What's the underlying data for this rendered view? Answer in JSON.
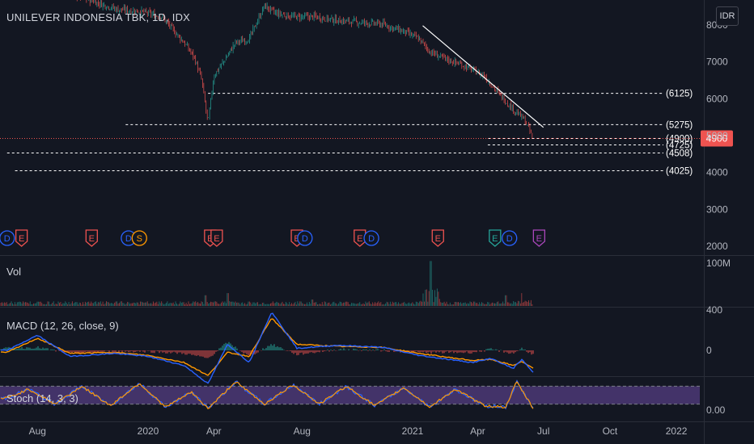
{
  "header": {
    "symbol_title": "UNILEVER INDONESIA TBK, 1D, IDX",
    "currency_button": "IDR"
  },
  "colors": {
    "background": "#131722",
    "up": "#26a69a",
    "down": "#ef5350",
    "macd": "#2962ff",
    "signal": "#ff9800",
    "stoch_band": "#7e57c2",
    "last_price_badge": "#ef5350"
  },
  "chart_data": [
    {
      "type": "candlestick",
      "title": "UNILEVER INDONESIA TBK, 1D, IDX",
      "y_ticks": [
        "2000",
        "3000",
        "4000",
        "5000",
        "6000",
        "7000",
        "8000"
      ],
      "ylim": [
        1750,
        8050
      ],
      "x_ticks": [
        "Aug",
        "2020",
        "Apr",
        "Aug",
        "2021",
        "Apr",
        "Jul",
        "Oct",
        "2022"
      ],
      "last_price": "4900",
      "close_series": [
        {
          "date": "2019-06-25",
          "close": 9200
        },
        {
          "date": "2019-07-20",
          "close": 8900
        },
        {
          "date": "2019-08-20",
          "close": 8850
        },
        {
          "date": "2019-09-20",
          "close": 8800
        },
        {
          "date": "2019-10-20",
          "close": 8600
        },
        {
          "date": "2019-11-20",
          "close": 8400
        },
        {
          "date": "2019-12-20",
          "close": 8350
        },
        {
          "date": "2020-01-20",
          "close": 8200
        },
        {
          "date": "2020-02-20",
          "close": 7500
        },
        {
          "date": "2020-03-05",
          "close": 7100
        },
        {
          "date": "2020-03-15",
          "close": 6500
        },
        {
          "date": "2020-03-24",
          "close": 5300
        },
        {
          "date": "2020-04-01",
          "close": 6600
        },
        {
          "date": "2020-04-15",
          "close": 7000
        },
        {
          "date": "2020-05-01",
          "close": 7500
        },
        {
          "date": "2020-05-20",
          "close": 7600
        },
        {
          "date": "2020-06-10",
          "close": 8500
        },
        {
          "date": "2020-06-25",
          "close": 8300
        },
        {
          "date": "2020-07-20",
          "close": 8200
        },
        {
          "date": "2020-08-20",
          "close": 8200
        },
        {
          "date": "2020-09-20",
          "close": 8100
        },
        {
          "date": "2020-10-20",
          "close": 8050
        },
        {
          "date": "2020-11-20",
          "close": 8000
        },
        {
          "date": "2020-12-20",
          "close": 7800
        },
        {
          "date": "2021-01-10",
          "close": 7600
        },
        {
          "date": "2021-01-25",
          "close": 7250
        },
        {
          "date": "2021-02-10",
          "close": 7100
        },
        {
          "date": "2021-03-10",
          "close": 6900
        },
        {
          "date": "2021-04-10",
          "close": 6600
        },
        {
          "date": "2021-05-01",
          "close": 6100
        },
        {
          "date": "2021-05-20",
          "close": 5700
        },
        {
          "date": "2021-06-05",
          "close": 5400
        },
        {
          "date": "2021-06-17",
          "close": 4900
        }
      ],
      "horizontal_levels": [
        {
          "label": "(6125)",
          "value": 6125,
          "from": "2020-03-24"
        },
        {
          "label": "(5275)",
          "value": 5275,
          "from": "2019-12-01"
        },
        {
          "label": "(4900)",
          "value": 4900,
          "from": "2021-04-15"
        },
        {
          "label": "(4725)",
          "value": 4725,
          "from": "2021-04-15"
        },
        {
          "label": "(4508)",
          "value": 4508,
          "from": "2019-06-20"
        },
        {
          "label": "(4025)",
          "value": 4025,
          "from": "2019-07-01"
        }
      ],
      "trendline": {
        "from": {
          "date": "2021-01-15",
          "value": 7960
        },
        "to": {
          "date": "2021-07-01",
          "value": 5200
        }
      },
      "event_markers": [
        {
          "type": "D",
          "date": "2019-06-20"
        },
        {
          "type": "E",
          "date": "2019-07-10"
        },
        {
          "type": "E",
          "date": "2019-10-15"
        },
        {
          "type": "D",
          "date": "2019-12-05"
        },
        {
          "type": "S",
          "date": "2019-12-20"
        },
        {
          "type": "E",
          "date": "2020-03-27"
        },
        {
          "type": "E",
          "date": "2020-04-05"
        },
        {
          "type": "E",
          "date": "2020-07-25"
        },
        {
          "type": "D",
          "date": "2020-08-05"
        },
        {
          "type": "E",
          "date": "2020-10-20"
        },
        {
          "type": "D",
          "date": "2020-11-05"
        },
        {
          "type": "E",
          "date": "2021-02-05"
        },
        {
          "type": "E",
          "date": "2021-04-25"
        },
        {
          "type": "D",
          "date": "2021-05-15"
        },
        {
          "type": "E",
          "date": "2021-06-25"
        }
      ]
    },
    {
      "type": "bar",
      "name": "Vol",
      "y_ticks": [
        "100M"
      ],
      "ylim": [
        0,
        110
      ],
      "note_values_in": "millions",
      "values_by_date": [
        {
          "date": "2019-08-01",
          "value": 10
        },
        {
          "date": "2020-03-20",
          "value": 25
        },
        {
          "date": "2020-04-20",
          "value": 30
        },
        {
          "date": "2020-08-15",
          "value": 15
        },
        {
          "date": "2021-01-20",
          "value": 35
        },
        {
          "date": "2021-01-26",
          "value": 105
        },
        {
          "date": "2021-05-10",
          "value": 25
        },
        {
          "date": "2021-06-01",
          "value": 30
        },
        {
          "date": "2021-06-17",
          "value": 35
        }
      ]
    },
    {
      "type": "line",
      "name": "MACD (12, 26, close, 9)",
      "y_ticks": [
        "400",
        "0"
      ],
      "ylim": [
        -380,
        440
      ],
      "series": [
        {
          "name": "MACD",
          "points": [
            {
              "date": "2019-06-20",
              "value": 0
            },
            {
              "date": "2019-08-01",
              "value": 150
            },
            {
              "date": "2019-09-15",
              "value": -60
            },
            {
              "date": "2019-11-15",
              "value": -30
            },
            {
              "date": "2020-01-01",
              "value": -60
            },
            {
              "date": "2020-02-20",
              "value": -150
            },
            {
              "date": "2020-03-24",
              "value": -330
            },
            {
              "date": "2020-04-20",
              "value": 60
            },
            {
              "date": "2020-05-20",
              "value": -120
            },
            {
              "date": "2020-06-20",
              "value": 380
            },
            {
              "date": "2020-07-25",
              "value": 20
            },
            {
              "date": "2020-09-20",
              "value": 50
            },
            {
              "date": "2020-11-20",
              "value": 30
            },
            {
              "date": "2021-01-10",
              "value": -50
            },
            {
              "date": "2021-02-20",
              "value": -90
            },
            {
              "date": "2021-03-25",
              "value": -120
            },
            {
              "date": "2021-04-20",
              "value": -80
            },
            {
              "date": "2021-05-20",
              "value": -180
            },
            {
              "date": "2021-06-01",
              "value": -90
            },
            {
              "date": "2021-06-17",
              "value": -220
            }
          ]
        },
        {
          "name": "Signal",
          "points": [
            {
              "date": "2019-06-20",
              "value": -20
            },
            {
              "date": "2019-08-01",
              "value": 120
            },
            {
              "date": "2019-09-15",
              "value": -30
            },
            {
              "date": "2019-11-15",
              "value": -20
            },
            {
              "date": "2020-01-01",
              "value": -50
            },
            {
              "date": "2020-02-20",
              "value": -120
            },
            {
              "date": "2020-03-24",
              "value": -250
            },
            {
              "date": "2020-04-20",
              "value": -20
            },
            {
              "date": "2020-05-20",
              "value": -60
            },
            {
              "date": "2020-06-20",
              "value": 320
            },
            {
              "date": "2020-07-25",
              "value": 60
            },
            {
              "date": "2020-09-20",
              "value": 40
            },
            {
              "date": "2020-11-20",
              "value": 30
            },
            {
              "date": "2021-01-10",
              "value": -30
            },
            {
              "date": "2021-02-20",
              "value": -70
            },
            {
              "date": "2021-03-25",
              "value": -100
            },
            {
              "date": "2021-04-20",
              "value": -90
            },
            {
              "date": "2021-05-20",
              "value": -150
            },
            {
              "date": "2021-06-01",
              "value": -110
            },
            {
              "date": "2021-06-17",
              "value": -180
            }
          ]
        }
      ]
    },
    {
      "type": "line",
      "name": "Stoch (14, 3, 3)",
      "y_ticks": [
        "0.00"
      ],
      "ylim": [
        -5,
        100
      ],
      "band": [
        20,
        80
      ],
      "series": [
        {
          "name": "Stoch",
          "points": [
            {
              "date": "2019-06-20",
              "value": 40
            },
            {
              "date": "2019-07-20",
              "value": 70
            },
            {
              "date": "2019-08-25",
              "value": 20
            },
            {
              "date": "2019-10-01",
              "value": 80
            },
            {
              "date": "2019-11-10",
              "value": 15
            },
            {
              "date": "2019-12-20",
              "value": 90
            },
            {
              "date": "2020-01-25",
              "value": 10
            },
            {
              "date": "2020-03-01",
              "value": 60
            },
            {
              "date": "2020-03-24",
              "value": 5
            },
            {
              "date": "2020-05-01",
              "value": 95
            },
            {
              "date": "2020-06-10",
              "value": 20
            },
            {
              "date": "2020-07-20",
              "value": 85
            },
            {
              "date": "2020-08-25",
              "value": 20
            },
            {
              "date": "2020-10-01",
              "value": 80
            },
            {
              "date": "2020-11-10",
              "value": 15
            },
            {
              "date": "2020-12-20",
              "value": 75
            },
            {
              "date": "2021-01-25",
              "value": 10
            },
            {
              "date": "2021-03-01",
              "value": 70
            },
            {
              "date": "2021-04-10",
              "value": 15
            },
            {
              "date": "2021-05-10",
              "value": 10
            },
            {
              "date": "2021-05-25",
              "value": 95
            },
            {
              "date": "2021-06-17",
              "value": 5
            }
          ]
        }
      ]
    }
  ]
}
